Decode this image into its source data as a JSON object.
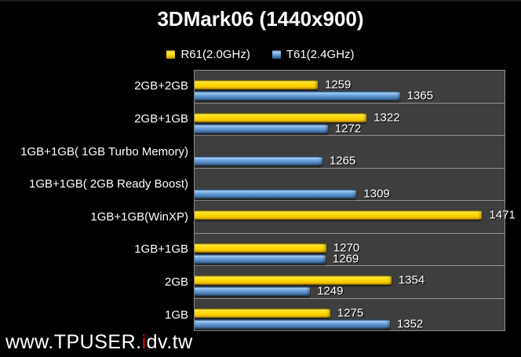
{
  "title": "3DMark06 (1440x900)",
  "legend": {
    "items": [
      {
        "label": "R61(2.0GHz)",
        "color": "#ffd800",
        "series": "r61"
      },
      {
        "label": "T61(2.4GHz)",
        "color": "#5e94cf",
        "series": "t61"
      }
    ]
  },
  "chart_data": {
    "type": "bar",
    "orientation": "horizontal",
    "title": "3DMark06 (1440x900)",
    "categories": [
      "2GB+2GB",
      "2GB+1GB",
      "1GB+1GB( 1GB Turbo Memory)",
      "1GB+1GB( 2GB Ready Boost)",
      "1GB+1GB(WinXP)",
      "1GB+1GB",
      "2GB",
      "1GB"
    ],
    "series": [
      {
        "name": "R61(2.0GHz)",
        "color": "#ffd800",
        "values": [
          1259,
          1322,
          null,
          null,
          1471,
          1270,
          1354,
          1275
        ]
      },
      {
        "name": "T61(2.4GHz)",
        "color": "#5e94cf",
        "values": [
          1365,
          1272,
          1265,
          1309,
          null,
          1269,
          1249,
          1352
        ]
      }
    ],
    "value_axis": {
      "min": 1100,
      "max": 1500,
      "visible": false
    },
    "data_labels": true,
    "legend_position": "top",
    "gridlines": "category-separators",
    "plot_background": "#3e3e3e",
    "plot_border": "#8f8f8f",
    "chart_background": "#000000"
  },
  "watermark": {
    "prefix": "www.TPUSER.",
    "accent": "i",
    "suffix": "dv.tw"
  }
}
